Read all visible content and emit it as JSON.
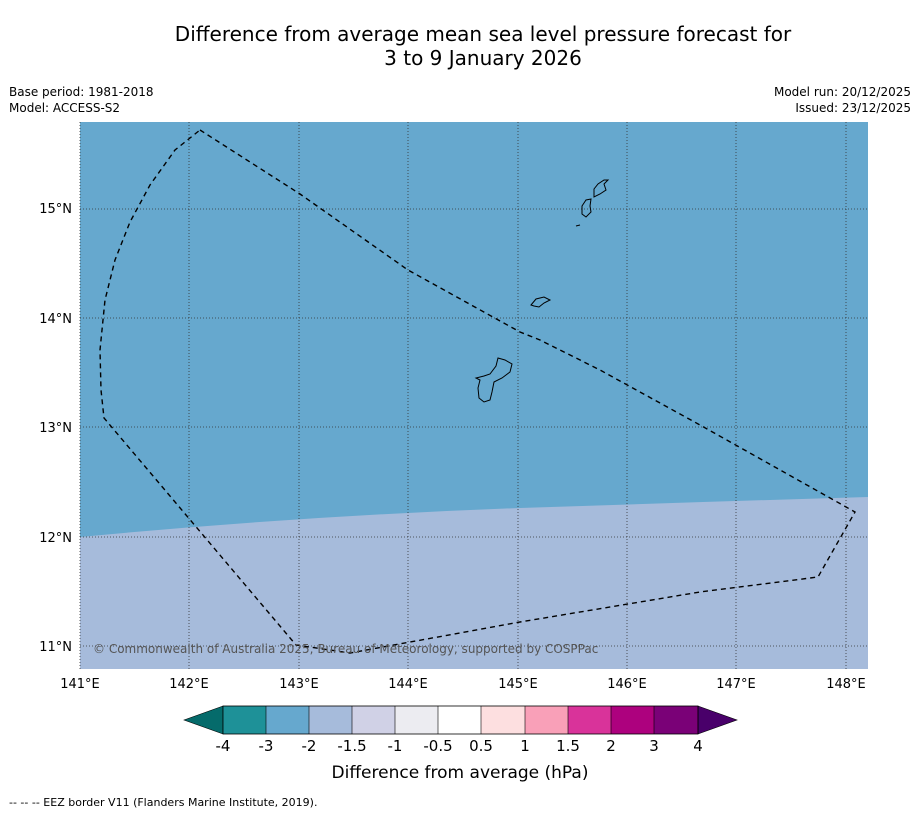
{
  "title": {
    "line1": "Difference from average mean sea level pressure forecast for",
    "line2": "3 to 9 January 2026"
  },
  "meta": {
    "base_period": "Base period: 1981-2018",
    "model": "Model: ACCESS-S2",
    "model_run": "Model run: 20/12/2025",
    "issued": "Issued: 23/12/2025"
  },
  "map": {
    "lon_ticks": [
      "141°E",
      "142°E",
      "143°E",
      "144°E",
      "145°E",
      "146°E",
      "147°E",
      "148°E"
    ],
    "lat_ticks": [
      "15°N",
      "14°N",
      "13°N",
      "12°N",
      "11°N"
    ],
    "copyright": "© Commonwealth of Australia 2025, Bureau of Meteorology, supported by COSPPac",
    "regions": [
      {
        "category": "-3 to -2",
        "color": "#66a8ce"
      },
      {
        "category": "-2 to -1.5",
        "color": "#a6bbdb"
      }
    ],
    "eez_color": "#000000"
  },
  "colorbar": {
    "label": "Difference from average (hPa)",
    "ticks": [
      "-4",
      "-3",
      "-2",
      "-1.5",
      "-1",
      "-0.5",
      "0.5",
      "1",
      "1.5",
      "2",
      "3",
      "4"
    ],
    "colors": [
      "#056b6b",
      "#1e9198",
      "#66a8ce",
      "#a6bbdb",
      "#d0d1e6",
      "#ececf1",
      "#ffffff",
      "#fddfe0",
      "#f9a0b8",
      "#d9339a",
      "#ad017e",
      "#7a0177",
      "#49006a"
    ]
  },
  "footnote": "--  --  -- EEZ border V11 (Flanders Marine Institute, 2019)."
}
